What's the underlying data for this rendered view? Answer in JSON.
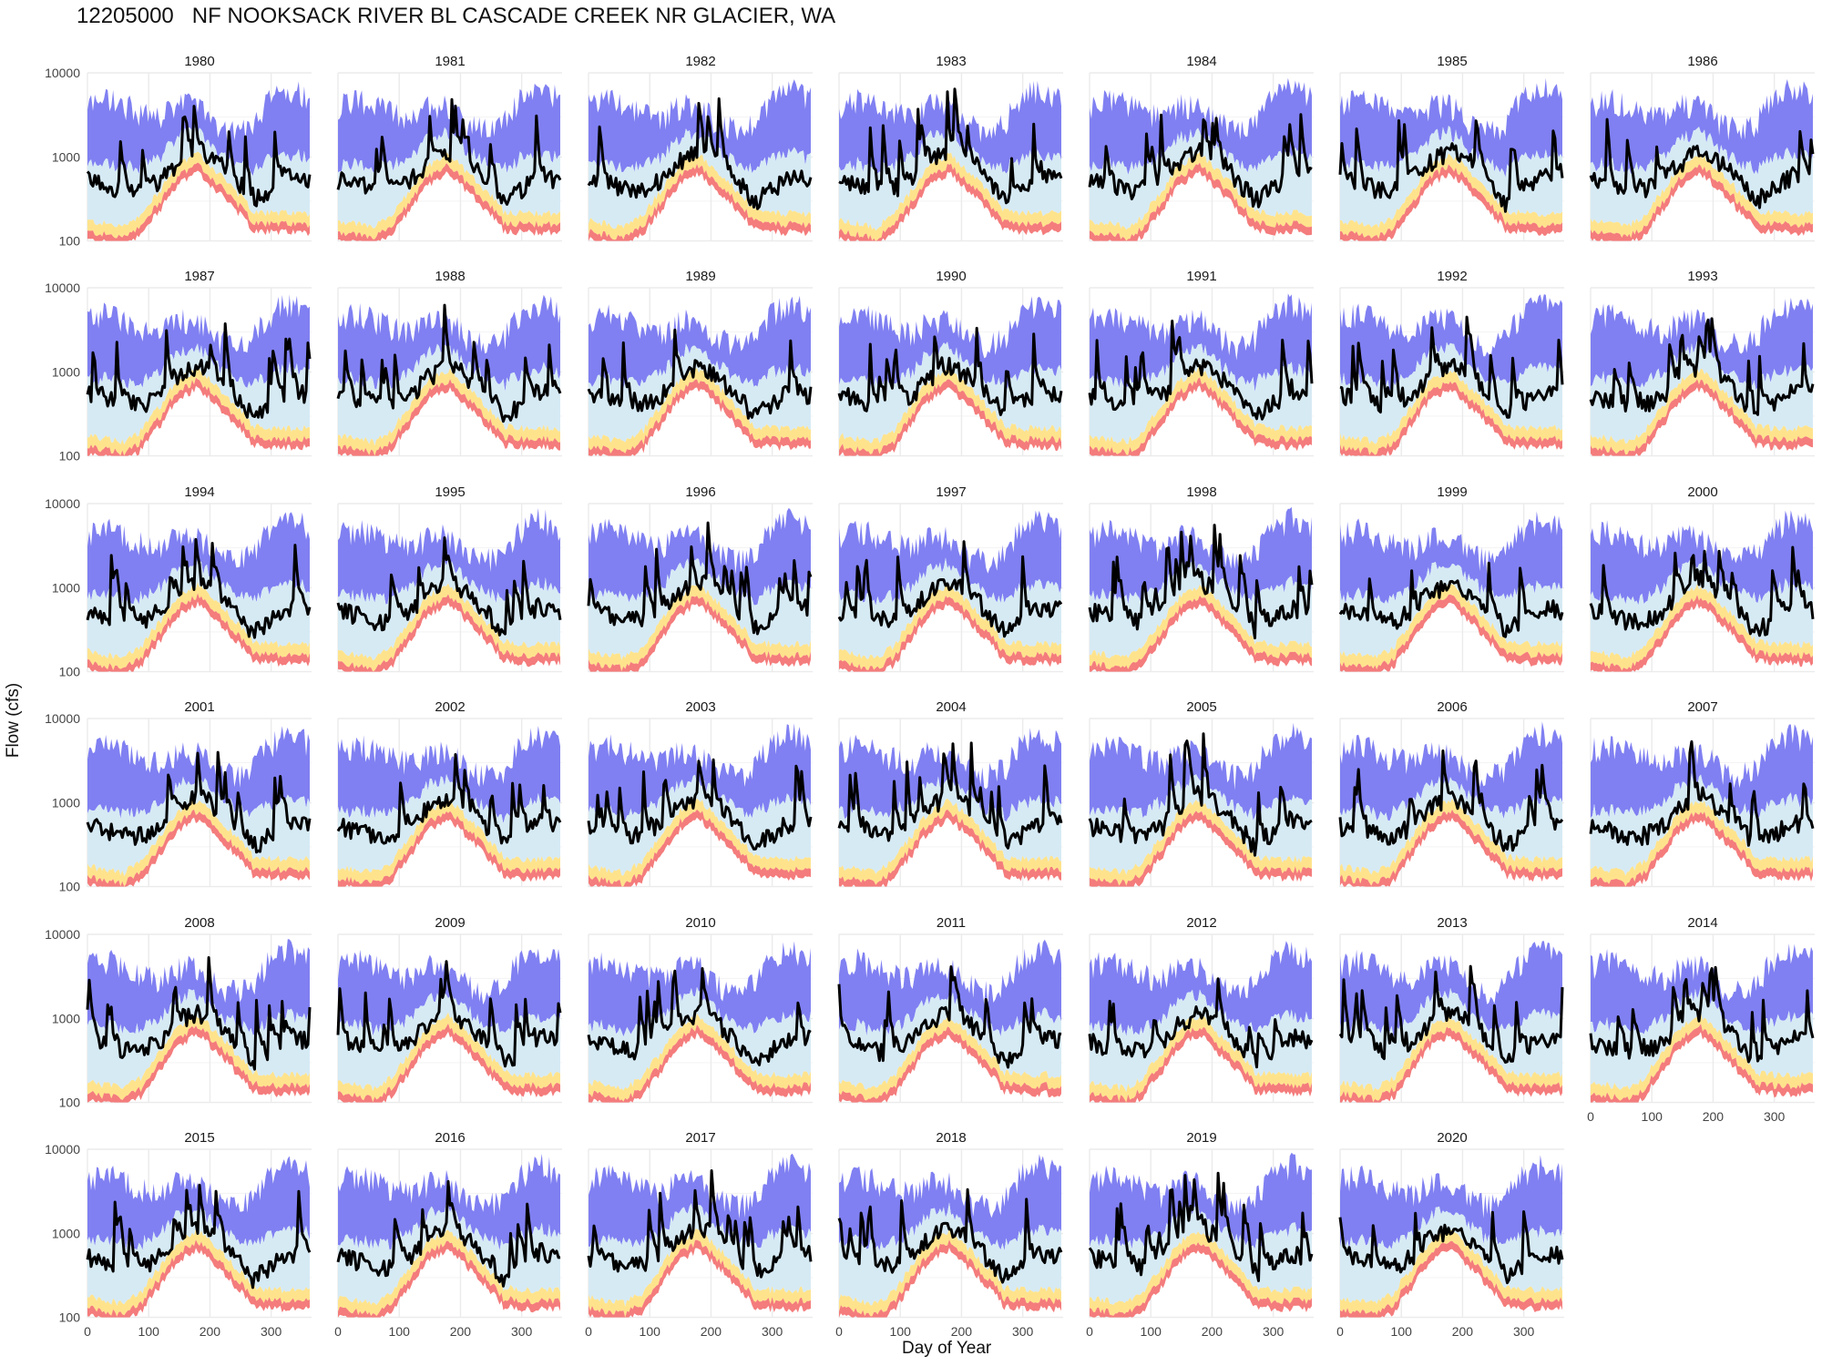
{
  "chart_data": {
    "type": "line",
    "title": "12205000   NF NOOKSACK RIVER BL CASCADE CREEK NR GLACIER, WA",
    "xlabel": "Day of Year",
    "ylabel": "Flow (cfs)",
    "yscale": "log",
    "ylim": [
      100,
      10000
    ],
    "xlim": [
      0,
      366
    ],
    "y_ticks": [
      "100",
      "1000",
      "10000"
    ],
    "x_ticks": [
      "0",
      "100",
      "200",
      "300"
    ],
    "grid": true,
    "legend": "none",
    "panels": [
      "1980",
      "1981",
      "1982",
      "1983",
      "1984",
      "1985",
      "1986",
      "1987",
      "1988",
      "1989",
      "1990",
      "1991",
      "1992",
      "1993",
      "1994",
      "1995",
      "1996",
      "1997",
      "1998",
      "1999",
      "2000",
      "2001",
      "2002",
      "2003",
      "2004",
      "2005",
      "2006",
      "2007",
      "2008",
      "2009",
      "2010",
      "2011",
      "2012",
      "2013",
      "2014",
      "2015",
      "2016",
      "2017",
      "2018",
      "2019",
      "2020"
    ],
    "colors": {
      "band_high": "#8080f2",
      "band_mid": "#d6eaf4",
      "band_low": "#ffe38c",
      "band_min": "#f47c7c",
      "flow_line": "#000000",
      "grid": "#ebebeb"
    },
    "series": [
      {
        "role": "percentile_envelope",
        "x": [
          0,
          30,
          60,
          90,
          120,
          150,
          180,
          210,
          240,
          270,
          300,
          330,
          365
        ],
        "low": [
          130,
          120,
          110,
          150,
          300,
          600,
          800,
          500,
          300,
          170,
          160,
          160,
          160
        ],
        "high": [
          5000,
          6000,
          5000,
          4000,
          3500,
          5000,
          5000,
          3000,
          2500,
          3000,
          6000,
          8000,
          6000
        ]
      },
      {
        "role": "median_flow",
        "x": [
          0,
          30,
          60,
          90,
          120,
          150,
          180,
          210,
          240,
          270,
          300,
          330,
          365
        ],
        "y": [
          900,
          800,
          700,
          700,
          900,
          1500,
          2000,
          1500,
          900,
          500,
          700,
          1000,
          900
        ]
      }
    ]
  }
}
